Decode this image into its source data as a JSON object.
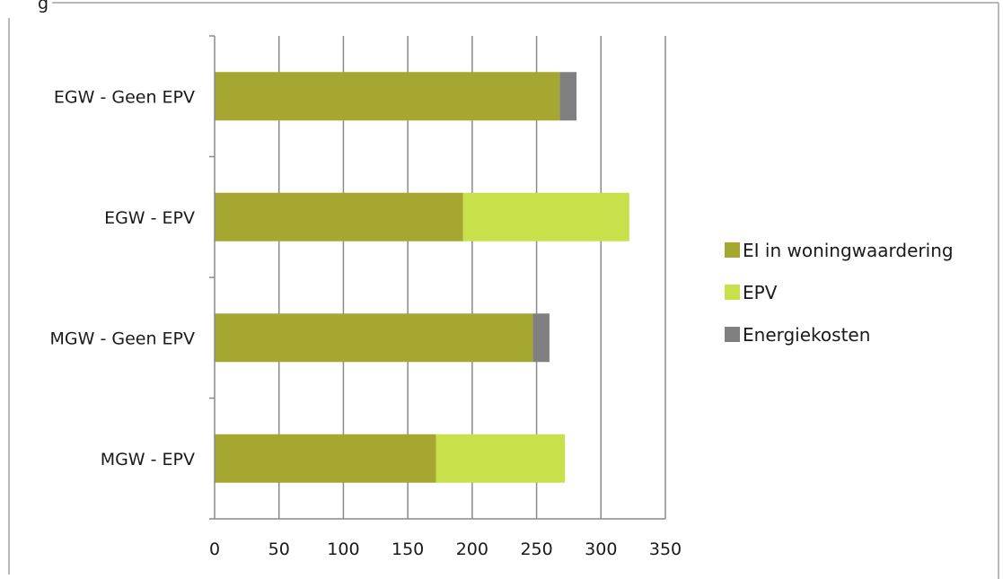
{
  "caption_fragment": "g",
  "chart_data": {
    "type": "bar",
    "orientation": "horizontal",
    "stacked": true,
    "categories": [
      "EGW - Geen EPV",
      "EGW - EPV",
      "MGW - Geen EPV",
      "MGW - EPV"
    ],
    "series": [
      {
        "name": "EI in woningwaardering",
        "values": [
          268,
          193,
          247,
          172
        ],
        "color": "#a5a731"
      },
      {
        "name": "EPV",
        "values": [
          0,
          129,
          0,
          100
        ],
        "color": "#c8e04a"
      },
      {
        "name": "Energiekosten",
        "values": [
          13,
          0,
          13,
          0
        ],
        "color": "#808080"
      }
    ],
    "xlim": [
      0,
      350
    ],
    "xticks": [
      "0",
      "50",
      "100",
      "150",
      "200",
      "250",
      "300",
      "350"
    ],
    "grid": true,
    "legend_position": "right"
  }
}
